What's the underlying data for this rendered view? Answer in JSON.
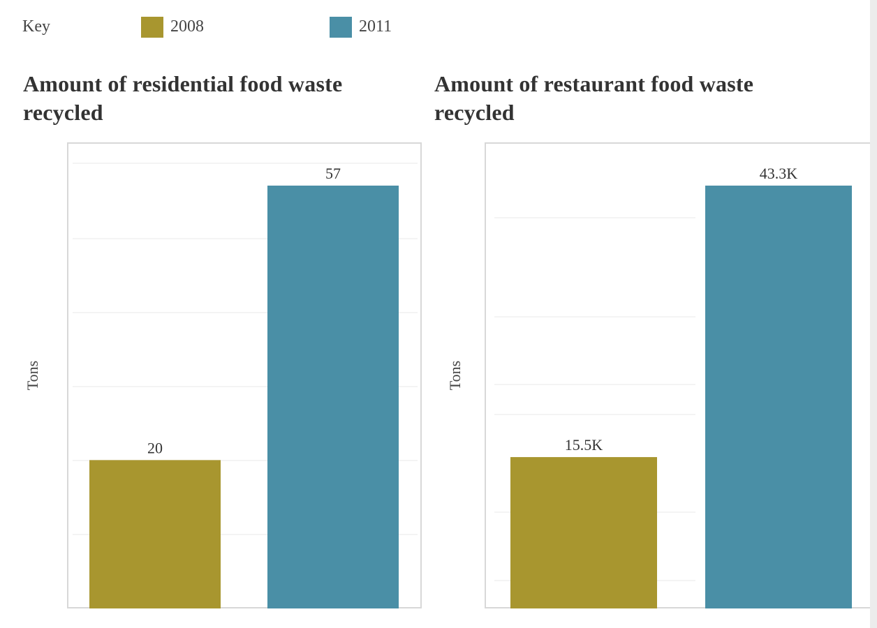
{
  "legend": {
    "title": "Key",
    "entries": [
      {
        "label": "2008",
        "color": "#a8962f"
      },
      {
        "label": "2011",
        "color": "#4a8fa6"
      }
    ]
  },
  "chart_data": [
    {
      "type": "bar",
      "title": "Amount of residential food waste recycled",
      "ylabel": "Tons",
      "xlabel": "",
      "categories": [
        "2008",
        "2011"
      ],
      "values": [
        20,
        57
      ],
      "data_labels": [
        "20",
        "57"
      ],
      "colors": [
        "#a8962f",
        "#4a8fa6"
      ],
      "ylim": [
        0,
        57
      ],
      "grid": true
    },
    {
      "type": "bar",
      "title": "Amount of restaurant food waste recycled",
      "ylabel": "Tons",
      "xlabel": "",
      "categories": [
        "2008",
        "2011"
      ],
      "values": [
        15500,
        43300
      ],
      "data_labels": [
        "15.5K",
        "43.3K"
      ],
      "colors": [
        "#a8962f",
        "#4a8fa6"
      ],
      "ylim": [
        0,
        43300
      ],
      "grid": true
    }
  ]
}
